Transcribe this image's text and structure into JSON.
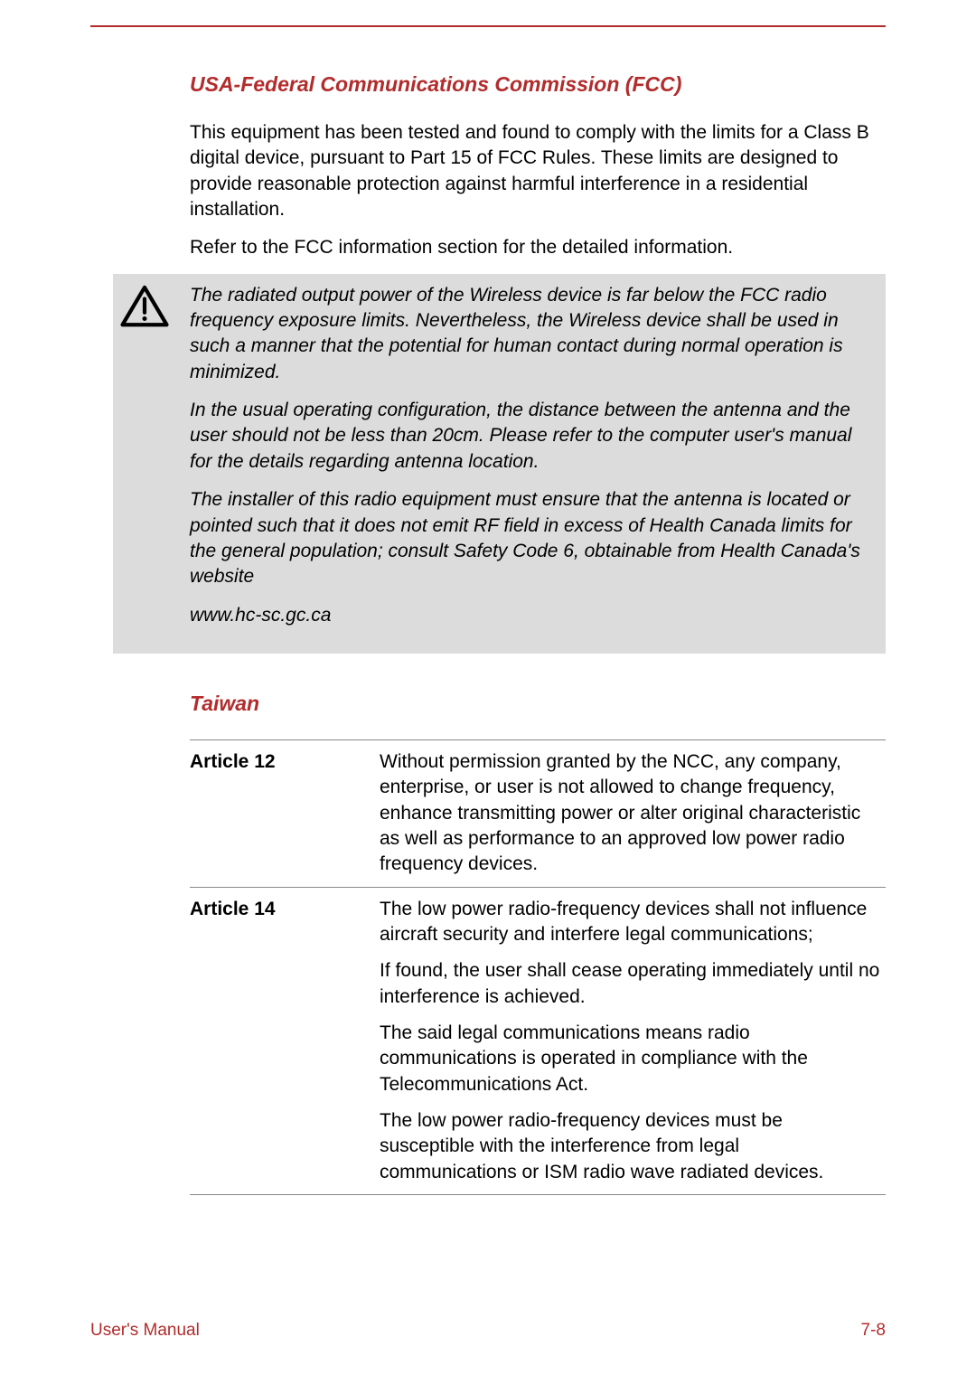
{
  "colors": {
    "accent": "#b22c2c",
    "warning_bg": "#dcdcdc",
    "text": "#000000",
    "page_bg": "#ffffff",
    "table_border": "#888888"
  },
  "typography": {
    "base_font": "Arial",
    "body_fontsize_pt": 16,
    "heading_fontsize_pt": 17
  },
  "section1": {
    "heading": "USA-Federal Communications Commission (FCC)",
    "p1": "This equipment has been tested and found to comply with the limits for a Class B digital device, pursuant to Part 15 of FCC Rules. These limits are designed to provide reasonable protection against harmful interference in a residential installation.",
    "p2": "Refer to the FCC information section for the detailed information."
  },
  "warning": {
    "icon_name": "caution-triangle",
    "p1": "The radiated output power of the Wireless device is far below the FCC radio frequency exposure limits. Nevertheless, the Wireless device shall be used in such a manner that the potential for human contact during normal operation is minimized.",
    "p2": "In the usual operating configuration, the distance between the antenna and the user should not be less than 20cm. Please refer to the computer user's manual for the details regarding antenna location.",
    "p3": "The installer of this radio equipment must ensure that the antenna is located or pointed such that it does not emit RF field in excess of Health Canada limits for the general population; consult Safety Code 6, obtainable from Health Canada's website",
    "p4": "www.hc-sc.gc.ca"
  },
  "section2": {
    "heading": "Taiwan",
    "rows": [
      {
        "label": "Article 12",
        "paras": [
          "Without permission granted by the NCC, any company, enterprise, or user is not allowed to change frequency, enhance transmitting power or alter original characteristic as well as performance to an approved low power radio frequency devices."
        ]
      },
      {
        "label": "Article 14",
        "paras": [
          "The low power radio-frequency devices shall not influence aircraft security and interfere legal communications;",
          "If found, the user shall cease operating immediately until no interference is achieved.",
          "The said legal communications means radio communications is operated in compliance with the Telecommunications Act.",
          "The low power radio-frequency devices must be susceptible with the interference from legal communications or ISM radio wave radiated devices."
        ]
      }
    ]
  },
  "footer": {
    "left": "User's Manual",
    "right": "7-8"
  }
}
